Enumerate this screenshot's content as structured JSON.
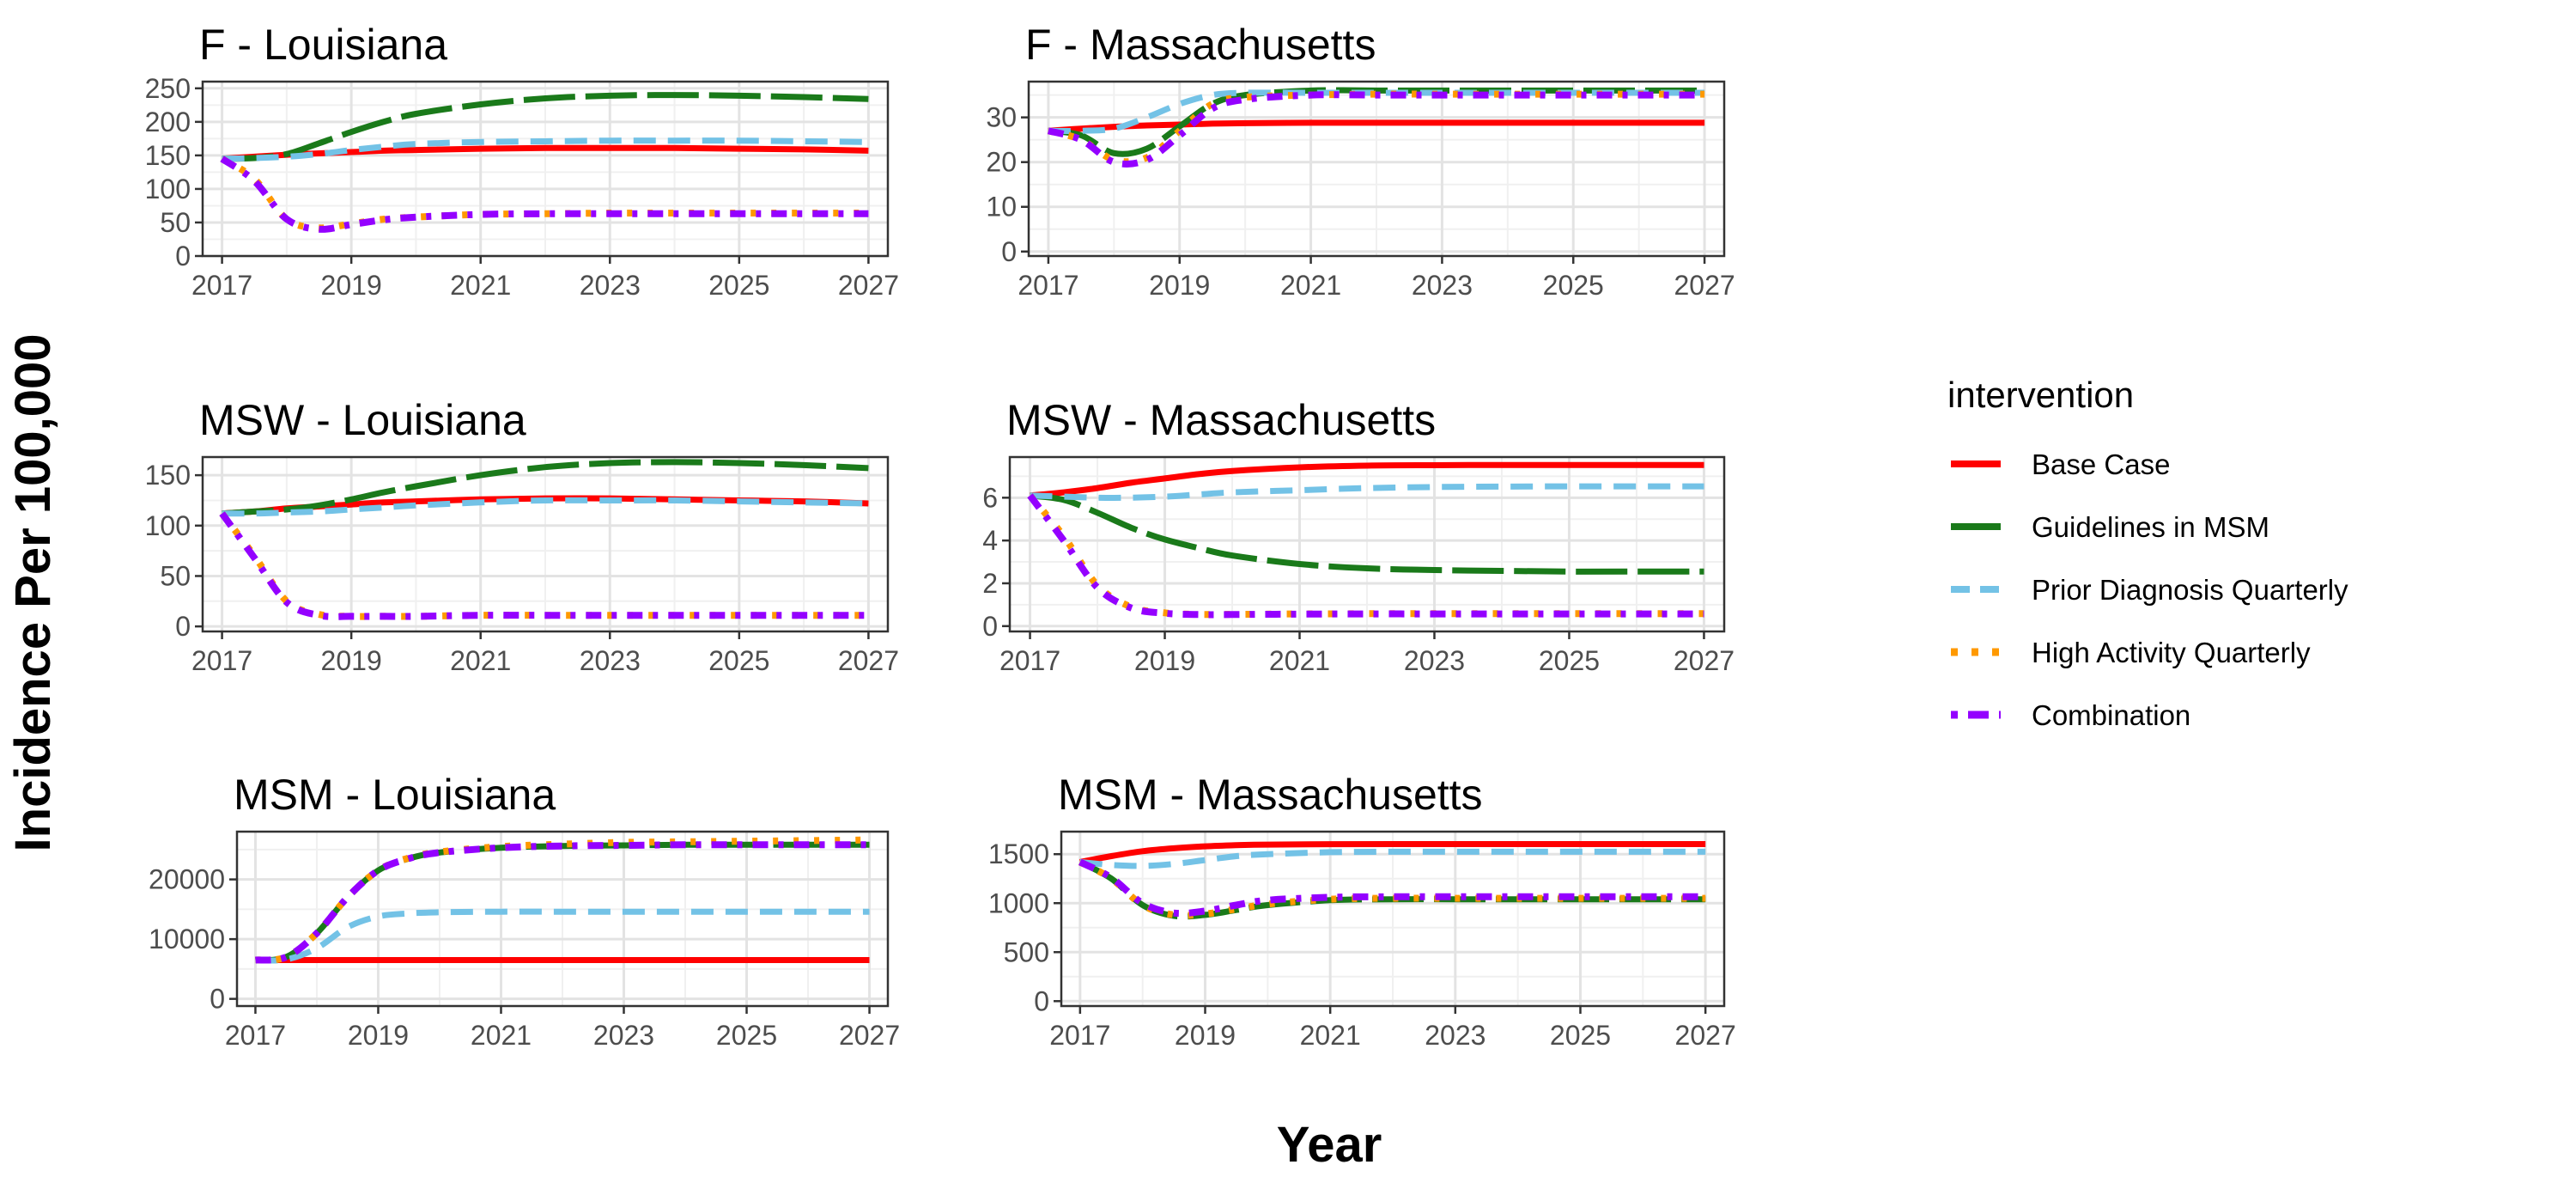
{
  "chart_data": {
    "type": "line",
    "xlabel": "Year",
    "ylabel": "Incidence Per 100,000",
    "xlim": [
      2017,
      2027
    ],
    "x_ticks": [
      2017,
      2019,
      2021,
      2023,
      2025,
      2027
    ],
    "x": [
      2017,
      2017.5,
      2018,
      2018.5,
      2019,
      2019.5,
      2020,
      2021,
      2022,
      2023,
      2024,
      2025,
      2026,
      2027
    ],
    "legend": {
      "title": "intervention",
      "entries": [
        {
          "name": "Base Case",
          "color": "#ff0000",
          "dash": "solid"
        },
        {
          "name": "Guidelines in MSM",
          "color": "#1a7a1a",
          "dash": "long"
        },
        {
          "name": "Prior Diagnosis Quarterly",
          "color": "#73c2e6",
          "dash": "dashed"
        },
        {
          "name": "High Activity Quarterly",
          "color": "#ff9900",
          "dash": "dotted"
        },
        {
          "name": "Combination",
          "color": "#9400ff",
          "dash": "dotdash"
        }
      ]
    },
    "panels": [
      {
        "title": "F - Louisiana",
        "ylim": [
          0,
          260
        ],
        "y_ticks": [
          0,
          50,
          100,
          150,
          200,
          250
        ],
        "series": [
          {
            "name": "Base Case",
            "values": [
              145,
              148,
              151,
              153,
              155,
              157,
              158,
              160,
              161,
              161,
              161,
              160,
              159,
              157
            ]
          },
          {
            "name": "Guidelines in MSM",
            "values": [
              145,
              146,
              152,
              168,
              185,
              200,
              212,
              226,
              235,
              239,
              240,
              239,
              237,
              234
            ]
          },
          {
            "name": "Prior Diagnosis Quarterly",
            "values": [
              145,
              146,
              148,
              152,
              158,
              163,
              167,
              170,
              171,
              172,
              172,
              172,
              171,
              170
            ]
          },
          {
            "name": "High Activity Quarterly",
            "values": [
              145,
              115,
              55,
              42,
              48,
              55,
              58,
              62,
              63,
              64,
              64,
              64,
              64,
              64
            ]
          },
          {
            "name": "Combination",
            "values": [
              145,
              112,
              55,
              40,
              47,
              54,
              58,
              62,
              63,
              63,
              63,
              63,
              63,
              63
            ]
          }
        ]
      },
      {
        "title": "F - Massachusetts",
        "ylim": [
          -1,
          38
        ],
        "y_ticks": [
          0,
          10,
          20,
          30
        ],
        "series": [
          {
            "name": "Base Case",
            "values": [
              27,
              27.5,
              27.9,
              28.2,
              28.4,
              28.6,
              28.7,
              28.8,
              28.8,
              28.8,
              28.8,
              28.8,
              28.8,
              28.8
            ]
          },
          {
            "name": "Guidelines in MSM",
            "values": [
              27,
              26,
              22,
              23,
              28,
              33,
              35,
              36,
              36,
              36,
              36,
              36,
              36,
              36
            ]
          },
          {
            "name": "Prior Diagnosis Quarterly",
            "values": [
              27,
              27,
              27.5,
              30,
              33,
              35,
              35.5,
              35.5,
              35.5,
              35.5,
              35.5,
              35.5,
              35.5,
              35.5
            ]
          },
          {
            "name": "High Activity Quarterly",
            "values": [
              27,
              25,
              20.5,
              21,
              27,
              33,
              34.5,
              35,
              35.2,
              35.2,
              35.2,
              35.2,
              35.2,
              35.2
            ]
          },
          {
            "name": "Combination",
            "values": [
              27,
              25,
              20,
              20.5,
              26,
              32,
              34,
              35,
              35,
              35,
              35,
              35,
              35,
              35
            ]
          }
        ]
      },
      {
        "title": "MSW - Louisiana",
        "ylim": [
          -5,
          168
        ],
        "y_ticks": [
          0,
          50,
          100,
          150
        ],
        "series": [
          {
            "name": "Base Case",
            "values": [
              112,
              114,
              117,
              119,
              121,
              123,
              124,
              126,
              127,
              127,
              126,
              125,
              124,
              122
            ]
          },
          {
            "name": "Guidelines in MSM",
            "values": [
              112,
              114,
              116,
              120,
              126,
              133,
              139,
              150,
              158,
              162,
              163,
              162,
              160,
              157
            ]
          },
          {
            "name": "Prior Diagnosis Quarterly",
            "values": [
              112,
              112,
              113,
              114,
              116,
              118,
              120,
              123,
              125,
              125,
              125,
              124,
              123,
              122
            ]
          },
          {
            "name": "High Activity Quarterly",
            "values": [
              112,
              70,
              25,
              12,
              10,
              10,
              10,
              11,
              11,
              11,
              11,
              11,
              11,
              11
            ]
          },
          {
            "name": "Combination",
            "values": [
              112,
              68,
              24,
              11,
              10,
              10,
              10,
              11,
              11,
              11,
              11,
              11,
              11,
              11
            ]
          }
        ]
      },
      {
        "title": "MSW - Massachusetts",
        "ylim": [
          -0.25,
          7.9
        ],
        "y_ticks": [
          0,
          2,
          4,
          6
        ],
        "series": [
          {
            "name": "Base Case",
            "values": [
              6.1,
              6.25,
              6.45,
              6.7,
              6.9,
              7.1,
              7.25,
              7.42,
              7.5,
              7.52,
              7.53,
              7.53,
              7.53,
              7.53
            ]
          },
          {
            "name": "Guidelines in MSM",
            "values": [
              6.1,
              5.9,
              5.3,
              4.6,
              4.05,
              3.65,
              3.3,
              2.9,
              2.7,
              2.62,
              2.58,
              2.55,
              2.55,
              2.55
            ]
          },
          {
            "name": "Prior Diagnosis Quarterly",
            "values": [
              6.1,
              6.05,
              6.0,
              6.0,
              6.05,
              6.15,
              6.25,
              6.35,
              6.45,
              6.5,
              6.52,
              6.53,
              6.53,
              6.53
            ]
          },
          {
            "name": "High Activity Quarterly",
            "values": [
              6.1,
              4.2,
              1.9,
              0.9,
              0.62,
              0.55,
              0.55,
              0.57,
              0.58,
              0.58,
              0.58,
              0.58,
              0.58,
              0.58
            ]
          },
          {
            "name": "Combination",
            "values": [
              6.1,
              4.0,
              1.8,
              0.85,
              0.6,
              0.54,
              0.54,
              0.56,
              0.57,
              0.57,
              0.57,
              0.57,
              0.57,
              0.57
            ]
          }
        ]
      },
      {
        "title": "MSM - Louisiana",
        "ylim": [
          -1200,
          28000
        ],
        "y_ticks": [
          0,
          10000,
          20000
        ],
        "series": [
          {
            "name": "Base Case",
            "values": [
              6500,
              6500,
              6500,
              6500,
              6500,
              6500,
              6500,
              6500,
              6500,
              6500,
              6500,
              6500,
              6500,
              6500
            ]
          },
          {
            "name": "Guidelines in MSM",
            "values": [
              6500,
              7000,
              11000,
              17000,
              21500,
              23500,
              24500,
              25300,
              25600,
              25700,
              25800,
              25800,
              25800,
              25800
            ]
          },
          {
            "name": "Prior Diagnosis Quarterly",
            "values": [
              6500,
              6600,
              8500,
              12000,
              13800,
              14300,
              14500,
              14600,
              14600,
              14600,
              14600,
              14600,
              14600,
              14600
            ]
          },
          {
            "name": "High Activity Quarterly",
            "values": [
              6500,
              7000,
              11000,
              17000,
              21500,
              23600,
              24600,
              25500,
              25900,
              26200,
              26300,
              26400,
              26500,
              26600
            ]
          },
          {
            "name": "Combination",
            "values": [
              6500,
              7000,
              11000,
              17000,
              21500,
              23500,
              24500,
              25300,
              25600,
              25700,
              25800,
              25800,
              25800,
              25800
            ]
          }
        ]
      },
      {
        "title": "MSM - Massachusetts",
        "ylim": [
          -50,
          1730
        ],
        "y_ticks": [
          0,
          500,
          1000,
          1500
        ],
        "series": [
          {
            "name": "Base Case",
            "values": [
              1420,
              1480,
              1530,
              1560,
              1580,
              1592,
              1598,
              1602,
              1603,
              1603,
              1603,
              1603,
              1603,
              1603
            ]
          },
          {
            "name": "Guidelines in MSM",
            "values": [
              1420,
              1250,
              980,
              870,
              880,
              930,
              980,
              1030,
              1040,
              1040,
              1040,
              1040,
              1040,
              1040
            ]
          },
          {
            "name": "Prior Diagnosis Quarterly",
            "values": [
              1420,
              1390,
              1380,
              1400,
              1440,
              1480,
              1500,
              1520,
              1525,
              1525,
              1525,
              1525,
              1525,
              1525
            ]
          },
          {
            "name": "High Activity Quarterly",
            "values": [
              1420,
              1250,
              980,
              880,
              890,
              940,
              990,
              1040,
              1050,
              1050,
              1050,
              1050,
              1050,
              1050
            ]
          },
          {
            "name": "Combination",
            "values": [
              1420,
              1260,
              1000,
              900,
              920,
              980,
              1030,
              1060,
              1065,
              1065,
              1065,
              1065,
              1065,
              1065
            ]
          }
        ]
      }
    ]
  }
}
